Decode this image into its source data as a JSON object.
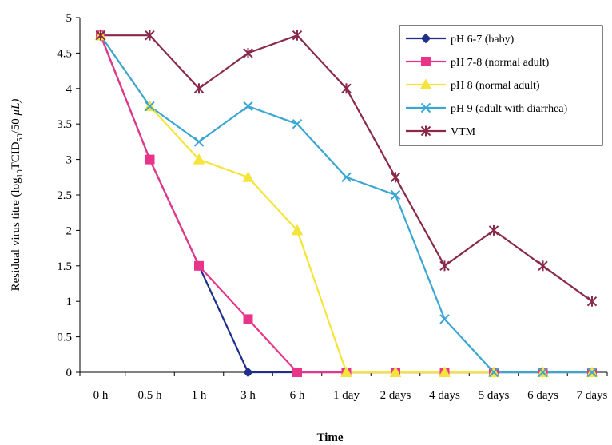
{
  "chart_data": {
    "type": "line",
    "title": "",
    "xlabel": "Time",
    "ylabel": "Residual virus titre (log10TCID50/50 μL)",
    "ylabel_parts": {
      "prefix": "Residual virus titre (log",
      "sub1": "10",
      "mid": "TCID",
      "sub2": "50",
      "suffix": "/50 ",
      "unit": "μL)"
    },
    "categories": [
      "0 h",
      "0.5 h",
      "1 h",
      "3 h",
      "6 h",
      "1 day",
      "2 days",
      "4 days",
      "5 days",
      "6 days",
      "7 days"
    ],
    "ylim": [
      0,
      5
    ],
    "yticks": [
      "0",
      "0.5",
      "1",
      "1.5",
      "2",
      "2.5",
      "3",
      "3.5",
      "4",
      "4.5",
      "5"
    ],
    "grid": false,
    "legend_position": "top-right",
    "series": [
      {
        "name": "pH 6-7 (baby)",
        "color": "#1f2f8a",
        "marker": "diamond",
        "x_index": [
          0,
          1,
          2,
          3,
          4,
          5,
          6,
          7,
          8,
          9,
          10
        ],
        "values": [
          4.75,
          3.0,
          1.5,
          0,
          0,
          0,
          0,
          0,
          0,
          0,
          0
        ]
      },
      {
        "name": "pH 7-8 (normal adult)",
        "color": "#e8358a",
        "marker": "square",
        "x_index": [
          0,
          1,
          2,
          3,
          4,
          5,
          6,
          7,
          8,
          9,
          10
        ],
        "values": [
          4.75,
          3.0,
          1.5,
          0.75,
          0,
          0,
          0,
          0,
          0,
          0,
          0
        ]
      },
      {
        "name": "pH 8 (normal adult)",
        "color": "#f5e43a",
        "marker": "triangle",
        "x_index": [
          0,
          1,
          2,
          3,
          4,
          5,
          6,
          7,
          8,
          9,
          10
        ],
        "values": [
          4.75,
          3.75,
          3.0,
          2.75,
          2.0,
          0,
          0,
          0,
          0,
          0,
          0
        ]
      },
      {
        "name": "pH 9 (adult with diarrhea)",
        "color": "#3aa6d4",
        "marker": "x",
        "x_index": [
          0,
          1,
          2,
          3,
          4,
          5,
          6,
          7,
          8,
          9,
          10
        ],
        "values": [
          4.75,
          3.75,
          3.25,
          3.75,
          3.5,
          2.75,
          2.5,
          0.75,
          0,
          0,
          0
        ]
      },
      {
        "name": "VTM",
        "color": "#8a2a4a",
        "marker": "star",
        "x_index": [
          0,
          1,
          2,
          3,
          4,
          5,
          6,
          7,
          8,
          9,
          10
        ],
        "values": [
          4.75,
          4.75,
          4.0,
          4.5,
          4.75,
          4.0,
          2.75,
          1.5,
          2.0,
          1.5,
          1.0
        ]
      }
    ]
  }
}
